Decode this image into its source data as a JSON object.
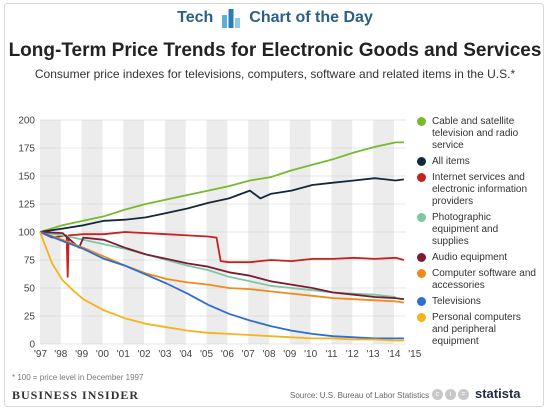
{
  "header": {
    "brand": "Tech",
    "label": "Chart of the Day"
  },
  "chart_data": {
    "type": "line",
    "title": "Long-Term Price Trends for Electronic Goods and Services",
    "subtitle": "Consumer price indexes for televisions, computers, software and related items in the U.S.*",
    "ylim": [
      0,
      200
    ],
    "yticks": [
      0,
      25,
      50,
      75,
      100,
      125,
      150,
      175,
      200
    ],
    "xticks": [
      "'97",
      "'98",
      "'99",
      "'00",
      "'01",
      "'02",
      "'03",
      "'04",
      "'05",
      "'06",
      "'07",
      "'08",
      "'09",
      "'10",
      "'11",
      "'12",
      "'13",
      "'14",
      "'15"
    ],
    "xlim": [
      1997.92,
      2015.5
    ],
    "grid": "alternating vertical bands",
    "legend_position": "right",
    "series": [
      {
        "name": "Cable and satellite television and radio service",
        "color": "#7ab82f",
        "points": [
          [
            1997.92,
            100
          ],
          [
            1999,
            106
          ],
          [
            2000,
            110
          ],
          [
            2001,
            114
          ],
          [
            2002,
            120
          ],
          [
            2003,
            125
          ],
          [
            2004,
            129
          ],
          [
            2005,
            133
          ],
          [
            2006,
            137
          ],
          [
            2007,
            141
          ],
          [
            2008,
            146
          ],
          [
            2009,
            149
          ],
          [
            2010,
            155
          ],
          [
            2011,
            160
          ],
          [
            2012,
            165
          ],
          [
            2013,
            171
          ],
          [
            2014,
            176
          ],
          [
            2015,
            180
          ],
          [
            2015.4,
            180
          ]
        ]
      },
      {
        "name": "All items",
        "color": "#15283b",
        "points": [
          [
            1997.92,
            100
          ],
          [
            1999,
            103
          ],
          [
            2000,
            106
          ],
          [
            2001,
            110
          ],
          [
            2002,
            111
          ],
          [
            2003,
            113
          ],
          [
            2004,
            117
          ],
          [
            2005,
            121
          ],
          [
            2006,
            126
          ],
          [
            2007,
            130
          ],
          [
            2008,
            137
          ],
          [
            2008.5,
            130
          ],
          [
            2009,
            134
          ],
          [
            2010,
            137
          ],
          [
            2011,
            142
          ],
          [
            2012,
            144
          ],
          [
            2013,
            146
          ],
          [
            2014,
            148
          ],
          [
            2015,
            146
          ],
          [
            2015.4,
            147
          ]
        ]
      },
      {
        "name": "Internet services and electronic information providers",
        "color": "#c8201f",
        "points": [
          [
            1997.92,
            100
          ],
          [
            1998.5,
            95
          ],
          [
            1999.2,
            97
          ],
          [
            1999.25,
            60
          ],
          [
            1999.3,
            97
          ],
          [
            2000,
            98
          ],
          [
            2001,
            98
          ],
          [
            2002,
            100
          ],
          [
            2003,
            99
          ],
          [
            2004,
            98
          ],
          [
            2005,
            97
          ],
          [
            2006,
            96
          ],
          [
            2006.4,
            95
          ],
          [
            2006.6,
            74
          ],
          [
            2007,
            73
          ],
          [
            2008,
            73
          ],
          [
            2009,
            75
          ],
          [
            2010,
            74
          ],
          [
            2011,
            76
          ],
          [
            2012,
            76
          ],
          [
            2013,
            77
          ],
          [
            2014,
            76
          ],
          [
            2015,
            77
          ],
          [
            2015.4,
            75
          ]
        ]
      },
      {
        "name": "Photographic equipment and supplies",
        "color": "#7dc7a3",
        "points": [
          [
            1997.92,
            100
          ],
          [
            1999,
            97
          ],
          [
            2000,
            93
          ],
          [
            2001,
            89
          ],
          [
            2002,
            85
          ],
          [
            2003,
            80
          ],
          [
            2004,
            75
          ],
          [
            2005,
            70
          ],
          [
            2006,
            66
          ],
          [
            2007,
            60
          ],
          [
            2008,
            56
          ],
          [
            2009,
            52
          ],
          [
            2010,
            50
          ],
          [
            2011,
            48
          ],
          [
            2012,
            46
          ],
          [
            2013,
            45
          ],
          [
            2014,
            44
          ],
          [
            2015,
            42
          ]
        ]
      },
      {
        "name": "Audio equipment",
        "color": "#7a1c34",
        "points": [
          [
            1997.92,
            100
          ],
          [
            1999,
            99
          ],
          [
            1999.8,
            86
          ],
          [
            2000,
            95
          ],
          [
            2001,
            93
          ],
          [
            2002,
            86
          ],
          [
            2003,
            80
          ],
          [
            2004,
            76
          ],
          [
            2005,
            72
          ],
          [
            2006,
            69
          ],
          [
            2007,
            64
          ],
          [
            2008,
            61
          ],
          [
            2009,
            56
          ],
          [
            2010,
            53
          ],
          [
            2011,
            50
          ],
          [
            2012,
            46
          ],
          [
            2013,
            44
          ],
          [
            2014,
            42
          ],
          [
            2015,
            41
          ],
          [
            2015.4,
            40
          ]
        ]
      },
      {
        "name": "Computer software and accessories",
        "color": "#f08a1c",
        "points": [
          [
            1997.92,
            100
          ],
          [
            1999,
            93
          ],
          [
            2000,
            86
          ],
          [
            2001,
            78
          ],
          [
            2002,
            70
          ],
          [
            2003,
            63
          ],
          [
            2004,
            58
          ],
          [
            2005,
            55
          ],
          [
            2006,
            53
          ],
          [
            2007,
            50
          ],
          [
            2008,
            49
          ],
          [
            2009,
            47
          ],
          [
            2010,
            45
          ],
          [
            2011,
            43
          ],
          [
            2012,
            41
          ],
          [
            2013,
            40
          ],
          [
            2014,
            39
          ],
          [
            2015,
            38
          ],
          [
            2015.4,
            37
          ]
        ]
      },
      {
        "name": "Televisions",
        "color": "#2d6fce",
        "points": [
          [
            1997.92,
            100
          ],
          [
            1999,
            92
          ],
          [
            2000,
            85
          ],
          [
            2001,
            76
          ],
          [
            2002,
            70
          ],
          [
            2003,
            62
          ],
          [
            2004,
            54
          ],
          [
            2005,
            45
          ],
          [
            2006,
            35
          ],
          [
            2007,
            27
          ],
          [
            2008,
            21
          ],
          [
            2009,
            16
          ],
          [
            2010,
            12
          ],
          [
            2011,
            9
          ],
          [
            2012,
            7
          ],
          [
            2013,
            6
          ],
          [
            2014,
            5
          ],
          [
            2015,
            5
          ],
          [
            2015.4,
            5
          ]
        ]
      },
      {
        "name": "Personal computers and peripheral equipment",
        "color": "#f6b31c",
        "points": [
          [
            1997.92,
            100
          ],
          [
            1998.5,
            72
          ],
          [
            1999,
            57
          ],
          [
            1999.5,
            48
          ],
          [
            2000,
            40
          ],
          [
            2001,
            30
          ],
          [
            2002,
            23
          ],
          [
            2003,
            18
          ],
          [
            2004,
            15
          ],
          [
            2005,
            12
          ],
          [
            2006,
            10
          ],
          [
            2007,
            9
          ],
          [
            2008,
            8
          ],
          [
            2009,
            7
          ],
          [
            2010,
            6
          ],
          [
            2011,
            5
          ],
          [
            2012,
            5
          ],
          [
            2013,
            4
          ],
          [
            2014,
            4
          ],
          [
            2015,
            3
          ],
          [
            2015.4,
            3
          ]
        ]
      }
    ]
  },
  "footnote": "* 100 = price level in December 1997",
  "footer": {
    "publisher": "BUSINESS INSIDER",
    "source": "Source: U.S. Bureau of Labor Statistics",
    "brand": "statista"
  }
}
